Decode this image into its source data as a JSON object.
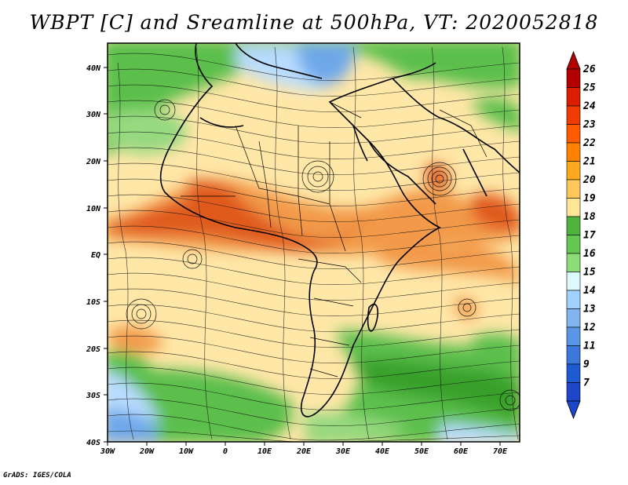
{
  "title": "WBPT [C] and Sreamline at 500hPa, VT: 2020052818",
  "footer": "GrADS: IGES/COLA",
  "map": {
    "lon_range": [
      -30,
      75
    ],
    "lat_range": [
      -40,
      45
    ],
    "lon_ticks": [
      "30W",
      "20W",
      "10W",
      "0",
      "10E",
      "20E",
      "30E",
      "40E",
      "50E",
      "60E",
      "70E"
    ],
    "lat_ticks": [
      "40N",
      "30N",
      "20N",
      "10N",
      "EQ",
      "10S",
      "20S",
      "30S",
      "40S"
    ]
  },
  "colorbar": {
    "labels": [
      "26",
      "25",
      "24",
      "23",
      "22",
      "21",
      "20",
      "19",
      "18",
      "17",
      "16",
      "15",
      "14",
      "13",
      "12",
      "11",
      "9",
      "7"
    ],
    "colors": [
      "#b40000",
      "#dc1e00",
      "#f03c00",
      "#ff5a00",
      "#ff8200",
      "#ffaa1e",
      "#ffc85a",
      "#ffe696",
      "#50b43c",
      "#64c850",
      "#8cdc78",
      "#dcfafa",
      "#a0d2ff",
      "#82b4f0",
      "#5a96e6",
      "#3c78dc",
      "#1e5ad2",
      "#1e46c8"
    ]
  },
  "field_colors": {
    "hot": "#e05a1e",
    "warm": "#f29a4a",
    "mild": "#fbd38a",
    "cool": "#ffe7a8",
    "green_dark": "#37a02a",
    "green": "#5cbf4c",
    "green_light": "#96d97f",
    "blue": "#6ea8ea",
    "blue_light": "#b8dcff"
  }
}
